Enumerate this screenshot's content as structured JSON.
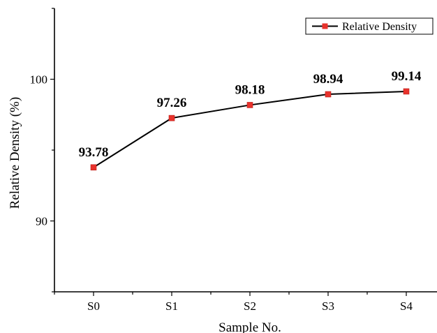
{
  "chart_data": {
    "type": "line",
    "title": "",
    "xlabel": "Sample No.",
    "ylabel": "Relative Density (%)",
    "categories": [
      "S0",
      "S1",
      "S2",
      "S3",
      "S4"
    ],
    "ylim": [
      85,
      105
    ],
    "yticks": [
      90,
      100
    ],
    "grid": false,
    "legend_position": "top-right",
    "series": [
      {
        "name": "Relative Density",
        "values": [
          93.78,
          97.26,
          98.18,
          98.94,
          99.14
        ],
        "data_labels": [
          "93.78",
          "97.26",
          "98.18",
          "98.94",
          "99.14"
        ],
        "line_color": "#000000",
        "marker": "square",
        "marker_color": "#e8322c"
      }
    ]
  }
}
